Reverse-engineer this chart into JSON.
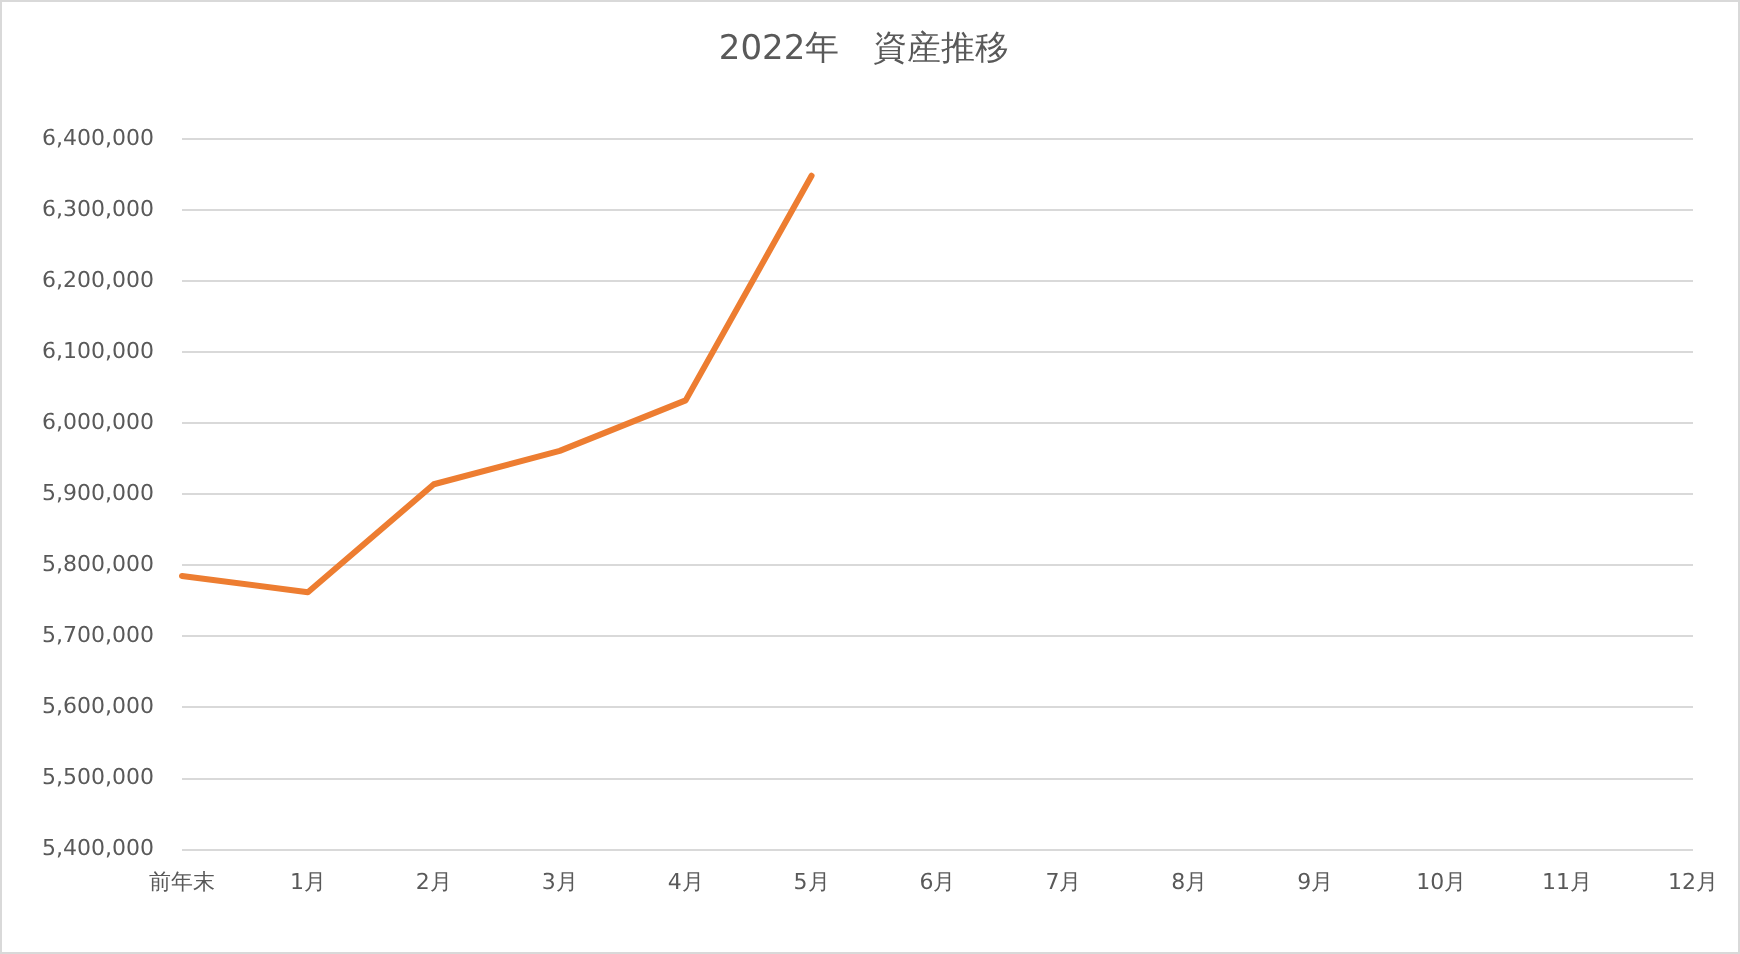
{
  "chart_data": {
    "type": "line",
    "title": "2022年　資産推移",
    "categories": [
      "前年末",
      "1月",
      "2月",
      "3月",
      "4月",
      "5月",
      "6月",
      "7月",
      "8月",
      "9月",
      "10月",
      "11月",
      "12月"
    ],
    "series": [
      {
        "color": "#ed7d31",
        "values": [
          5785000,
          5762000,
          5914000,
          5961000,
          6032000,
          6348000,
          null,
          null,
          null,
          null,
          null,
          null,
          null
        ]
      }
    ],
    "ylim": [
      5400000,
      6400000
    ],
    "yticks": [
      {
        "value": 5400000,
        "label": "5,400,000"
      },
      {
        "value": 5500000,
        "label": "5,500,000"
      },
      {
        "value": 5600000,
        "label": "5,600,000"
      },
      {
        "value": 5700000,
        "label": "5,700,000"
      },
      {
        "value": 5800000,
        "label": "5,800,000"
      },
      {
        "value": 5900000,
        "label": "5,900,000"
      },
      {
        "value": 6000000,
        "label": "6,000,000"
      },
      {
        "value": 6100000,
        "label": "6,100,000"
      },
      {
        "value": 6200000,
        "label": "6,200,000"
      },
      {
        "value": 6300000,
        "label": "6,300,000"
      },
      {
        "value": 6400000,
        "label": "6,400,000"
      }
    ],
    "grid": "y",
    "legend": false,
    "marker": "none",
    "line_style": "solid"
  }
}
